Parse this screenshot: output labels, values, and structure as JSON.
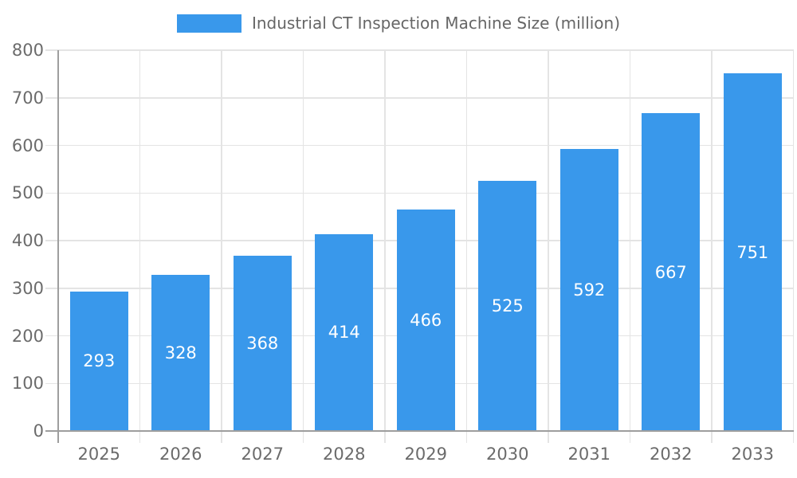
{
  "chart_data": {
    "type": "bar",
    "title": "Industrial CT Inspection Machine Size (million)",
    "legend": [
      "Industrial CT Inspection Machine Size (million)"
    ],
    "legend_position": "top-center",
    "categories": [
      "2025",
      "2026",
      "2027",
      "2028",
      "2029",
      "2030",
      "2031",
      "2032",
      "2033"
    ],
    "values": [
      293,
      328,
      368,
      414,
      466,
      525,
      592,
      667,
      751
    ],
    "xlabel": "",
    "ylabel": "",
    "ylim": [
      0,
      800
    ],
    "ytick_step": 100,
    "yticks": [
      0,
      100,
      200,
      300,
      400,
      500,
      600,
      700,
      800
    ],
    "grid": true,
    "value_labels": "inside-center",
    "colors": {
      "bar": "#3998EB",
      "grid_line": "#E4E4E4",
      "axis_line": "#9E9E9E",
      "tick_text": "#6B6B6B",
      "value_label_text": "#FFFFFF",
      "legend_text": "#666666",
      "background": "#FFFFFF"
    }
  }
}
